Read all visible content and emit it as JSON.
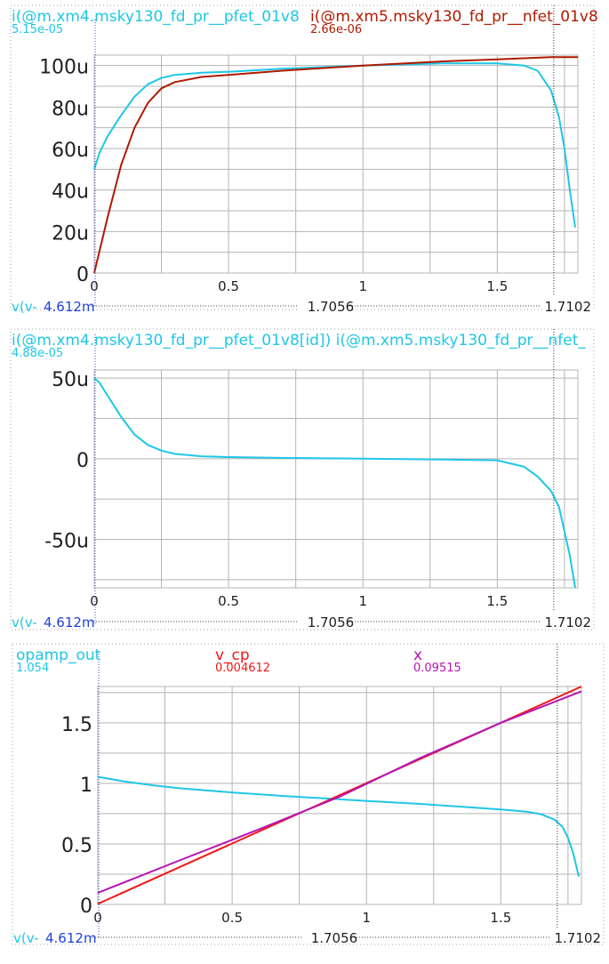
{
  "colors": {
    "cyan": "#1fc6e6",
    "darkred": "#b01a00",
    "red": "#f21818",
    "magenta": "#b514b5",
    "blue": "#2040e0",
    "grid": "#b4b4b4",
    "frame": "#a0a0a0",
    "text": "#202020"
  },
  "chart_data": [
    {
      "type": "line",
      "legend": [
        {
          "label": "i(@m.xm4.msky130_fd_pr__pfet_01v8",
          "value": "5.15e-05",
          "color": "cyan"
        },
        {
          "label": "i(@m.xm5.msky130_fd_pr__nfet_01v8",
          "value": "2.66e-06",
          "color": "darkred"
        }
      ],
      "xlim": [
        0,
        1.8
      ],
      "ylim": [
        0,
        0.000105
      ],
      "xticks": [
        0,
        0.5,
        1,
        1.5
      ],
      "xtick_labels": [
        "0",
        "0.5",
        "1",
        "1.5"
      ],
      "yticks": [
        0,
        2e-05,
        4e-05,
        6e-05,
        8e-05,
        0.0001
      ],
      "ytick_labels": [
        "0",
        "20u",
        "40u",
        "60u",
        "80u",
        "100u"
      ],
      "cursor_x": 1.7102,
      "xaxis_readout": {
        "name": "v(v-",
        "cursor_a": "4.612m",
        "diff": "1.7056",
        "cursor_b": "1.7102"
      },
      "series": [
        {
          "color": "cyan",
          "x": [
            0,
            0.02,
            0.05,
            0.1,
            0.15,
            0.2,
            0.25,
            0.3,
            0.4,
            0.5,
            0.7,
            1.0,
            1.3,
            1.5,
            1.6,
            1.65,
            1.7,
            1.73,
            1.75,
            1.77,
            1.79
          ],
          "y": [
            5e-05,
            5.8e-05,
            6.6e-05,
            7.6e-05,
            8.5e-05,
            9.1e-05,
            9.4e-05,
            9.55e-05,
            9.65e-05,
            9.7e-05,
            9.85e-05,
            0.0001,
            0.000101,
            0.000101,
            0.0001,
            9.75e-05,
            8.8e-05,
            7.5e-05,
            6e-05,
            4e-05,
            2.2e-05
          ]
        },
        {
          "color": "darkred",
          "x": [
            0,
            0.05,
            0.1,
            0.15,
            0.2,
            0.25,
            0.3,
            0.4,
            0.5,
            0.7,
            1.0,
            1.3,
            1.5,
            1.7,
            1.8
          ],
          "y": [
            0,
            2.7e-05,
            5.2e-05,
            7e-05,
            8.2e-05,
            8.9e-05,
            9.2e-05,
            9.45e-05,
            9.55e-05,
            9.75e-05,
            0.0001,
            0.000102,
            0.000103,
            0.000104,
            0.000104
          ]
        }
      ]
    },
    {
      "type": "line",
      "legend": [
        {
          "label": "i(@m.xm4.msky130_fd_pr__pfet_01v8[id]) i(@m.xm5.msky130_fd_pr__nfet_",
          "value": "4.88e-05",
          "color": "cyan"
        }
      ],
      "xlim": [
        0,
        1.8
      ],
      "ylim": [
        -8e-05,
        5.5e-05
      ],
      "xticks": [
        0,
        0.5,
        1,
        1.5
      ],
      "xtick_labels": [
        "0",
        "0.5",
        "1",
        "1.5"
      ],
      "yticks": [
        -5e-05,
        0,
        5e-05
      ],
      "ytick_labels": [
        "-50u",
        "0",
        "50u"
      ],
      "cursor_x": 1.7102,
      "xaxis_readout": {
        "name": "v(v-",
        "cursor_a": "4.612m",
        "diff": "1.7056",
        "cursor_b": "1.7102"
      },
      "series": [
        {
          "color": "cyan",
          "x": [
            0,
            0.02,
            0.05,
            0.1,
            0.15,
            0.2,
            0.25,
            0.3,
            0.4,
            0.5,
            0.7,
            1.0,
            1.3,
            1.5,
            1.6,
            1.65,
            1.7,
            1.73,
            1.75,
            1.77,
            1.79
          ],
          "y": [
            5e-05,
            4.7e-05,
            3.9e-05,
            2.6e-05,
            1.5e-05,
            8.5e-06,
            5e-06,
            3e-06,
            1.5e-06,
            1e-06,
            5e-07,
            0,
            -5e-07,
            -1e-06,
            -5e-06,
            -1.1e-05,
            -2e-05,
            -3e-05,
            -4.5e-05,
            -6e-05,
            -8e-05
          ]
        }
      ]
    },
    {
      "type": "line",
      "legend": [
        {
          "label": "opamp_out",
          "value": "1.054",
          "color": "cyan"
        },
        {
          "label": "v_cp",
          "value": "0.004612",
          "color": "red"
        },
        {
          "label": "x",
          "value": "0.09515",
          "color": "magenta"
        }
      ],
      "xlim": [
        0,
        1.8
      ],
      "ylim": [
        0,
        1.8
      ],
      "xticks": [
        0,
        0.5,
        1,
        1.5
      ],
      "xtick_labels": [
        "0",
        "0.5",
        "1",
        "1.5"
      ],
      "yticks": [
        0,
        0.5,
        1,
        1.5
      ],
      "ytick_labels": [
        "0",
        "0.5",
        "1",
        "1.5"
      ],
      "cursor_x": 1.7102,
      "xaxis_readout": {
        "name": "v(v-",
        "cursor_a": "4.612m",
        "diff": "1.7056",
        "cursor_b": "1.7102"
      },
      "series": [
        {
          "color": "cyan",
          "x": [
            0,
            0.05,
            0.1,
            0.2,
            0.3,
            0.5,
            0.7,
            1.0,
            1.2,
            1.4,
            1.5,
            1.55,
            1.6,
            1.65,
            1.7,
            1.73,
            1.75,
            1.77,
            1.79
          ],
          "y": [
            1.054,
            1.035,
            1.015,
            0.985,
            0.96,
            0.925,
            0.895,
            0.855,
            0.83,
            0.8,
            0.785,
            0.775,
            0.765,
            0.745,
            0.7,
            0.64,
            0.55,
            0.42,
            0.23
          ]
        },
        {
          "color": "red",
          "x": [
            0,
            1.8
          ],
          "y": [
            0.004612,
            1.8
          ]
        },
        {
          "color": "magenta",
          "x": [
            0,
            0.3,
            0.6,
            0.9,
            1.2,
            1.5,
            1.8
          ],
          "y": [
            0.09515,
            0.36,
            0.62,
            0.89,
            1.21,
            1.5,
            1.76
          ]
        }
      ]
    }
  ]
}
